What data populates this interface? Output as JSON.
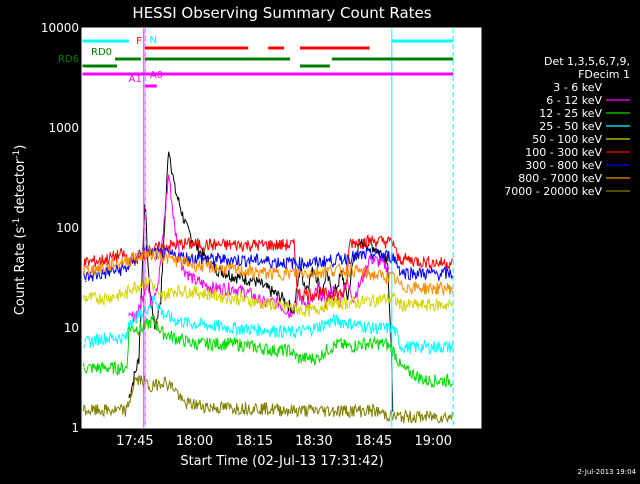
{
  "chart_data": {
    "type": "line",
    "title": "HESSI Observing Summary Count Rates",
    "xlabel": "Start Time (02-Jul-13 17:31:42)",
    "ylabel_main": "Count Rate (s",
    "ylabel_sup1": "-1",
    "ylabel_mid": " detector",
    "ylabel_sup2": "-1",
    "ylabel_end": ")",
    "y_scale": "log",
    "ylim": [
      1,
      10000
    ],
    "xlim": [
      "17:31:42",
      "19:12:00"
    ],
    "x_ticks": [
      {
        "t": "17:45",
        "label": "17:45"
      },
      {
        "t": "18:00",
        "label": "18:00"
      },
      {
        "t": "18:15",
        "label": "18:15"
      },
      {
        "t": "18:30",
        "label": "18:30"
      },
      {
        "t": "18:45",
        "label": "18:45"
      },
      {
        "t": "19:00",
        "label": "19:00"
      }
    ],
    "y_ticks": [
      {
        "value": 1,
        "label": "1"
      },
      {
        "value": 10,
        "label": "10"
      },
      {
        "value": 100,
        "label": "100"
      },
      {
        "value": 1000,
        "label": "1000"
      },
      {
        "value": 10000,
        "label": "10000"
      }
    ],
    "legend": {
      "placement": "right",
      "header1": "Det 1,3,5,6,7,9,",
      "header2": "FDecim 1",
      "entries": [
        {
          "label": "3 - 6 keV",
          "color": "#000000"
        },
        {
          "label": "6 - 12 keV",
          "color": "#ff00ff"
        },
        {
          "label": "12 - 25 keV",
          "color": "#00dd00"
        },
        {
          "label": "25 - 50 keV",
          "color": "#00ffff"
        },
        {
          "label": "50 - 100 keV",
          "color": "#d4d400"
        },
        {
          "label": "100 - 300 keV",
          "color": "#ff0000"
        },
        {
          "label": "300 - 800 keV",
          "color": "#0000ff"
        },
        {
          "label": "800 - 7000 keV",
          "color": "#ff8c00"
        },
        {
          "label": "7000 - 20000 keV",
          "color": "#808000"
        }
      ]
    },
    "series": [
      {
        "name": "3 - 6 keV",
        "color": "#000000",
        "points": [
          [
            "17:43:30",
            2
          ],
          [
            "17:46:00",
            5
          ],
          [
            "17:47:30",
            200
          ],
          [
            "17:48:30",
            30
          ],
          [
            "17:50:00",
            10
          ],
          [
            "17:51:30",
            20
          ],
          [
            "17:53:30",
            650
          ],
          [
            "17:55:00",
            250
          ],
          [
            "17:58:00",
            100
          ],
          [
            "18:01:00",
            60
          ],
          [
            "18:05:00",
            40
          ],
          [
            "18:10:00",
            33
          ],
          [
            "18:15:00",
            30
          ],
          [
            "18:18:00",
            25
          ],
          [
            "18:22:00",
            20
          ],
          [
            "18:25:00",
            15
          ],
          [
            "18:26:30",
            40
          ],
          [
            "18:28:00",
            25
          ],
          [
            "18:30:00",
            40
          ],
          [
            "18:31:00",
            30
          ],
          [
            "18:32:00",
            20
          ],
          [
            "18:33:00",
            35
          ],
          [
            "18:35:00",
            22
          ],
          [
            "18:37:00",
            35
          ],
          [
            "18:38:30",
            20
          ],
          [
            "18:40:00",
            50
          ],
          [
            "18:42:00",
            70
          ],
          [
            "18:44:00",
            70
          ],
          [
            "18:46:00",
            60
          ],
          [
            "18:48:30",
            50
          ],
          [
            "18:49:30",
            5
          ],
          [
            "18:50:00",
            1
          ]
        ]
      },
      {
        "name": "6 - 12 keV",
        "color": "#ff00ff",
        "points": [
          [
            "17:43:30",
            12
          ],
          [
            "17:46:00",
            15
          ],
          [
            "17:48:00",
            30
          ],
          [
            "17:49:00",
            18
          ],
          [
            "17:51:00",
            30
          ],
          [
            "17:53:30",
            350
          ],
          [
            "17:55:00",
            100
          ],
          [
            "17:57:00",
            40
          ],
          [
            "18:00:00",
            30
          ],
          [
            "18:05:00",
            25
          ],
          [
            "18:10:00",
            25
          ],
          [
            "18:14:00",
            22
          ],
          [
            "18:17:00",
            18
          ],
          [
            "18:21:00",
            18
          ],
          [
            "18:24:00",
            14
          ],
          [
            "18:26:00",
            20
          ],
          [
            "18:29:00",
            17
          ],
          [
            "18:31:00",
            25
          ],
          [
            "18:33:00",
            18
          ],
          [
            "18:34:30",
            25
          ],
          [
            "18:36:30",
            18
          ],
          [
            "18:38:00",
            30
          ],
          [
            "18:40:00",
            20
          ],
          [
            "18:42:00",
            30
          ],
          [
            "18:44:00",
            50
          ],
          [
            "18:47:00",
            45
          ],
          [
            "18:49:00",
            40
          ]
        ]
      },
      {
        "name": "12 - 25 keV",
        "color": "#00dd00",
        "points": [
          [
            "17:32:00",
            4
          ],
          [
            "17:37:00",
            4
          ],
          [
            "17:43:00",
            4
          ],
          [
            "17:43:30",
            10
          ],
          [
            "17:47:00",
            10
          ],
          [
            "17:49:30",
            12
          ],
          [
            "17:52:00",
            9
          ],
          [
            "17:55:00",
            8
          ],
          [
            "18:00:00",
            7
          ],
          [
            "18:05:00",
            7
          ],
          [
            "18:10:00",
            7
          ],
          [
            "18:15:00",
            6.5
          ],
          [
            "18:20:00",
            6
          ],
          [
            "18:24:00",
            6
          ],
          [
            "18:26:00",
            5
          ],
          [
            "18:29:00",
            5
          ],
          [
            "18:31:00",
            5
          ],
          [
            "18:33:00",
            6
          ],
          [
            "18:36:00",
            7
          ],
          [
            "18:39:00",
            6.5
          ],
          [
            "18:42:00",
            7
          ],
          [
            "18:45:00",
            7
          ],
          [
            "18:48:00",
            7
          ],
          [
            "18:50:00",
            6
          ],
          [
            "18:52:00",
            4
          ],
          [
            "18:58:00",
            3
          ],
          [
            "19:05:00",
            3
          ]
        ]
      },
      {
        "name": "25 - 50 keV",
        "color": "#00ffff",
        "points": [
          [
            "17:32:00",
            7
          ],
          [
            "17:37:00",
            8
          ],
          [
            "17:43:00",
            8
          ],
          [
            "17:43:30",
            12
          ],
          [
            "17:47:00",
            14
          ],
          [
            "17:50:00",
            20
          ],
          [
            "17:52:00",
            14
          ],
          [
            "17:55:00",
            12
          ],
          [
            "18:00:00",
            11
          ],
          [
            "18:10:00",
            10
          ],
          [
            "18:20:00",
            9.5
          ],
          [
            "18:25:00",
            9
          ],
          [
            "18:30:00",
            10
          ],
          [
            "18:35:00",
            12
          ],
          [
            "18:40:00",
            11
          ],
          [
            "18:45:00",
            10
          ],
          [
            "18:50:00",
            10
          ],
          [
            "18:52:00",
            6.5
          ],
          [
            "19:00:00",
            6.5
          ],
          [
            "19:05:00",
            6.5
          ]
        ]
      },
      {
        "name": "50 - 100 keV",
        "color": "#d4d400",
        "points": [
          [
            "17:32:00",
            20
          ],
          [
            "17:37:00",
            20
          ],
          [
            "17:43:00",
            22
          ],
          [
            "17:43:30",
            25
          ],
          [
            "17:46:00",
            27
          ],
          [
            "17:49:00",
            30
          ],
          [
            "17:51:00",
            20
          ],
          [
            "17:55:00",
            24
          ],
          [
            "18:00:00",
            23
          ],
          [
            "18:10:00",
            20
          ],
          [
            "18:20:00",
            17
          ],
          [
            "18:25:00",
            16
          ],
          [
            "18:27:00",
            15
          ],
          [
            "18:30:00",
            15
          ],
          [
            "18:34:00",
            18
          ],
          [
            "18:40:00",
            18
          ],
          [
            "18:45:00",
            19
          ],
          [
            "18:50:00",
            20
          ],
          [
            "18:52:00",
            17
          ],
          [
            "19:00:00",
            17
          ],
          [
            "19:05:00",
            17
          ]
        ]
      },
      {
        "name": "100 - 300 keV",
        "color": "#ff0000",
        "points": [
          [
            "17:32:00",
            45
          ],
          [
            "17:37:00",
            48
          ],
          [
            "17:42:00",
            55
          ],
          [
            "17:43:30",
            48
          ],
          [
            "17:46:00",
            50
          ],
          [
            "17:48:00",
            58
          ],
          [
            "17:52:00",
            65
          ],
          [
            "17:57:00",
            70
          ],
          [
            "18:05:00",
            68
          ],
          [
            "18:15:00",
            68
          ],
          [
            "18:25:00",
            68
          ],
          [
            "18:26:00",
            22
          ],
          [
            "18:30:00",
            22
          ],
          [
            "18:35:00",
            22
          ],
          [
            "18:38:00",
            22
          ],
          [
            "18:39:00",
            72
          ],
          [
            "18:45:00",
            75
          ],
          [
            "18:50:00",
            72
          ],
          [
            "18:51:00",
            50
          ],
          [
            "19:00:00",
            45
          ],
          [
            "19:05:00",
            45
          ]
        ]
      },
      {
        "name": "300 - 800 keV",
        "color": "#0000ff",
        "points": [
          [
            "17:32:00",
            32
          ],
          [
            "17:37:00",
            35
          ],
          [
            "17:43:00",
            40
          ],
          [
            "17:46:00",
            55
          ],
          [
            "17:48:00",
            58
          ],
          [
            "17:55:00",
            53
          ],
          [
            "18:00:00",
            50
          ],
          [
            "18:10:00",
            48
          ],
          [
            "18:15:00",
            48
          ],
          [
            "18:20:00",
            46
          ],
          [
            "18:25:00",
            45
          ],
          [
            "18:30:00",
            45
          ],
          [
            "18:35:00",
            48
          ],
          [
            "18:40:00",
            52
          ],
          [
            "18:45:00",
            55
          ],
          [
            "18:50:00",
            52
          ],
          [
            "18:52:00",
            36
          ],
          [
            "19:00:00",
            35
          ],
          [
            "19:05:00",
            35
          ]
        ]
      },
      {
        "name": "800 - 7000 keV",
        "color": "#ff8c00",
        "points": [
          [
            "17:32:00",
            38
          ],
          [
            "17:37:00",
            40
          ],
          [
            "17:43:00",
            48
          ],
          [
            "17:47:00",
            55
          ],
          [
            "17:50:00",
            55
          ],
          [
            "17:55:00",
            48
          ],
          [
            "18:00:00",
            43
          ],
          [
            "18:10:00",
            38
          ],
          [
            "18:20:00",
            35
          ],
          [
            "18:30:00",
            36
          ],
          [
            "18:35:00",
            38
          ],
          [
            "18:40:00",
            38
          ],
          [
            "18:45:00",
            34
          ],
          [
            "18:50:00",
            32
          ],
          [
            "18:52:00",
            26
          ],
          [
            "19:00:00",
            25
          ],
          [
            "19:05:00",
            25
          ]
        ]
      },
      {
        "name": "7000 - 20000 keV",
        "color": "#808000",
        "points": [
          [
            "17:32:00",
            1.5
          ],
          [
            "17:37:00",
            1.5
          ],
          [
            "17:43:00",
            1.5
          ],
          [
            "17:45:00",
            3
          ],
          [
            "17:47:00",
            3
          ],
          [
            "17:49:00",
            2.5
          ],
          [
            "17:52:00",
            3
          ],
          [
            "17:55:00",
            2.5
          ],
          [
            "17:57:00",
            1.8
          ],
          [
            "18:05:00",
            1.6
          ],
          [
            "18:15:00",
            1.6
          ],
          [
            "18:25:00",
            1.5
          ],
          [
            "18:35:00",
            1.5
          ],
          [
            "18:45:00",
            1.5
          ],
          [
            "18:50:00",
            1.3
          ],
          [
            "19:05:00",
            1.3
          ]
        ]
      }
    ],
    "flags": [
      {
        "label": "N",
        "color": "#00ffff",
        "segments": [
          [
            "17:31:42",
            "17:43:30"
          ],
          [
            "18:49:40",
            "19:05:00"
          ]
        ]
      },
      {
        "label": "F",
        "color": "#ff0000",
        "segments": [
          [
            "17:47:30",
            "18:13:30"
          ],
          [
            "18:18:30",
            "18:22:30"
          ],
          [
            "18:26:30",
            "18:44:00"
          ]
        ]
      },
      {
        "label": "RD0",
        "color": "#008000",
        "segments": [
          [
            "17:40:00",
            "17:46:30"
          ],
          [
            "17:47:30",
            "18:24:00"
          ],
          [
            "18:34:30",
            "19:05:00"
          ]
        ]
      },
      {
        "label": "RD6",
        "color": "#008000",
        "segments": [
          [
            "17:31:42",
            "17:40:30"
          ],
          [
            "18:26:30",
            "18:34:00"
          ]
        ]
      },
      {
        "label": "A0",
        "color": "#ff00ff",
        "segments": [
          [
            "17:31:42",
            "19:05:00"
          ]
        ]
      },
      {
        "label": "A1",
        "color": "#ff00ff",
        "segments": [
          [
            "17:47:30",
            "17:50:30"
          ]
        ]
      }
    ],
    "markers": [
      {
        "t": "17:47:40",
        "style": "dashed",
        "color": "#00ffff"
      },
      {
        "t": "18:49:35",
        "style": "solid",
        "color": "#00ffff"
      },
      {
        "t": "19:05:00",
        "style": "dashed",
        "color": "#00ffff"
      },
      {
        "t": "17:47:15",
        "style": "solid",
        "color": "#ff00ff"
      }
    ]
  },
  "footer": {
    "date_stamp": "2-Jul-2013 19:04"
  }
}
